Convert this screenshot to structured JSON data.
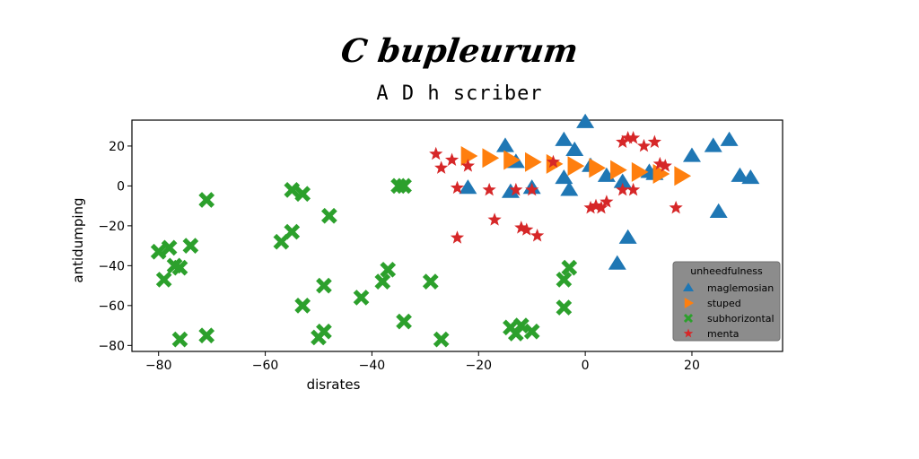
{
  "title": "C bupleurum",
  "subtitle": "A D h scriber",
  "chart_data": {
    "type": "scatter",
    "xlabel": "disrates",
    "ylabel": "antidumping",
    "xlim": [
      -85,
      37
    ],
    "ylim": [
      -83,
      33
    ],
    "xticks": [
      -80,
      -60,
      -40,
      -20,
      0,
      20
    ],
    "yticks": [
      -80,
      -60,
      -40,
      -20,
      0,
      20
    ],
    "xtick_labels": [
      "−80",
      "−60",
      "−40",
      "−20",
      "0",
      "20"
    ],
    "ytick_labels": [
      "−80",
      "−60",
      "−40",
      "−20",
      "0",
      "20"
    ],
    "grid": false,
    "legend": {
      "title": "unheedfulness",
      "placement": "lower-right",
      "entries": [
        "maglemosian",
        "stuped",
        "subhorizontal",
        "menta"
      ]
    },
    "series": [
      {
        "name": "maglemosian",
        "marker": "triangle",
        "color": "#1f77b4",
        "x": [
          0,
          -4,
          -15,
          -2,
          -13,
          1,
          4,
          7,
          12,
          13,
          20,
          24,
          27,
          29,
          31,
          25,
          8,
          6,
          -4,
          -22,
          -10,
          -14,
          -3
        ],
        "y": [
          32,
          23,
          20,
          18,
          12,
          10,
          5,
          2,
          7,
          6,
          15,
          20,
          23,
          5,
          4,
          -13,
          -26,
          -39,
          4,
          -1,
          -1,
          -3,
          -2
        ]
      },
      {
        "name": "stuped",
        "marker": "arrow",
        "color": "#ff7f0e",
        "x": [
          -22,
          -18,
          -14,
          -10,
          -6,
          -2,
          2,
          6,
          10,
          14,
          18
        ],
        "y": [
          15,
          14,
          13,
          12,
          11,
          10,
          9,
          8,
          7,
          6,
          5
        ]
      },
      {
        "name": "subhorizontal",
        "marker": "x",
        "color": "#2ca02c",
        "x": [
          -71,
          -55,
          -53,
          -48,
          -34,
          -35,
          -57,
          -55,
          -74,
          -77,
          -76,
          -80,
          -78,
          -79,
          -53,
          -49,
          -42,
          -38,
          -37,
          -29,
          -34,
          -49,
          -50,
          -27,
          -14,
          -12,
          -10,
          -13,
          -4,
          -3,
          -4,
          -76,
          -71
        ],
        "y": [
          -7,
          -2,
          -4,
          -15,
          0,
          0,
          -28,
          -23,
          -30,
          -40,
          -41,
          -33,
          -31,
          -47,
          -60,
          -50,
          -56,
          -48,
          -42,
          -48,
          -68,
          -73,
          -76,
          -77,
          -71,
          -70,
          -73,
          -74,
          -47,
          -41,
          -61,
          -77,
          -75
        ]
      },
      {
        "name": "menta",
        "marker": "star",
        "color": "#d62728",
        "x": [
          -28,
          -27,
          -25,
          -22,
          -24,
          -18,
          -17,
          -11,
          -12,
          -9,
          -10,
          -13,
          -24,
          -6,
          1,
          4,
          7,
          8,
          9,
          11,
          13,
          14,
          15,
          7,
          9,
          2,
          3,
          17
        ],
        "y": [
          16,
          9,
          13,
          10,
          -1,
          -2,
          -17,
          -22,
          -21,
          -25,
          -2,
          -2,
          -26,
          12,
          -11,
          -8,
          22,
          24,
          24,
          20,
          22,
          11,
          10,
          -2,
          -2,
          -10,
          -11,
          -11
        ]
      }
    ]
  }
}
